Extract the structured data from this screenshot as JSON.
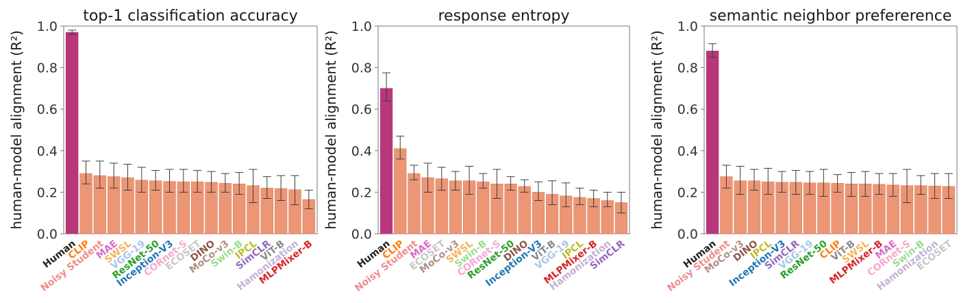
{
  "colors": {
    "human_bar": "#b8377a",
    "model_bar": "#ed9676",
    "bar_edge": "#d87c5a",
    "error_bar": "#3a3a3a",
    "axis": "#777777"
  },
  "model_label_colors": {
    "Human": "#222222",
    "CLIP": "#ff7f0e",
    "Noisy Student": "#f08c8c",
    "MAE": "#d96bc8",
    "SWSL": "#f5b35a",
    "VGG-19": "#a9c6e8",
    "ResNet-50": "#2ca02c",
    "Inception-V3": "#1f77b4",
    "CORnet-S": "#f7a8d0",
    "ECOSET": "#c7c7c7",
    "DINO": "#8c564b",
    "MoCo-v3": "#b08f86",
    "Swin-B": "#98df8a",
    "IPCL": "#bcbd22",
    "SimCLR": "#9467bd",
    "ViT-B": "#8a8a8a",
    "Hamonization": "#c5b0d5",
    "MLPMixer-B": "#d62728"
  },
  "chart_data": [
    {
      "type": "bar",
      "title": "top-1 classification accuracy",
      "ylabel": "human-model alignment (R²)",
      "ylim": [
        0,
        1.0
      ],
      "yticks": [
        "0.0",
        "0.2",
        "0.4",
        "0.6",
        "0.8",
        "1.0"
      ],
      "categories": [
        "Human",
        "CLIP",
        "Noisy Student",
        "MAE",
        "SWSL",
        "VGG-19",
        "ResNet-50",
        "Inception-V3",
        "CORnet-S",
        "ECOSET",
        "DINO",
        "MoCo-v3",
        "Swin-B",
        "IPCL",
        "SimCLR",
        "ViT-B",
        "Hamonization",
        "MLPMixer-B"
      ],
      "values": [
        0.97,
        0.29,
        0.28,
        0.275,
        0.27,
        0.258,
        0.255,
        0.252,
        0.25,
        0.25,
        0.248,
        0.243,
        0.24,
        0.232,
        0.22,
        0.218,
        0.212,
        0.165
      ],
      "err_low": [
        0.96,
        0.24,
        0.22,
        0.22,
        0.21,
        0.2,
        0.21,
        0.2,
        0.2,
        0.2,
        0.2,
        0.2,
        0.19,
        0.15,
        0.17,
        0.16,
        0.14,
        0.12
      ],
      "err_high": [
        0.98,
        0.35,
        0.35,
        0.34,
        0.335,
        0.32,
        0.305,
        0.31,
        0.31,
        0.305,
        0.3,
        0.29,
        0.295,
        0.31,
        0.275,
        0.28,
        0.28,
        0.21
      ]
    },
    {
      "type": "bar",
      "title": "response entropy",
      "ylabel": "human-model alignment (R²)",
      "ylim": [
        0,
        1.0
      ],
      "yticks": [
        "0.0",
        "0.2",
        "0.4",
        "0.6",
        "0.8",
        "1.0"
      ],
      "categories": [
        "Human",
        "CLIP",
        "Noisy Student",
        "MAE",
        "ECOSET",
        "MoCo-v3",
        "SWSL",
        "Swin-B",
        "CORnet-S",
        "ResNet-50",
        "DINO",
        "Inception-V3",
        "ViT-B",
        "VGG-19",
        "IPCL",
        "MLPMixer-B",
        "Hamonization",
        "SimCLR"
      ],
      "values": [
        0.7,
        0.41,
        0.29,
        0.27,
        0.265,
        0.255,
        0.255,
        0.25,
        0.24,
        0.24,
        0.228,
        0.2,
        0.19,
        0.182,
        0.175,
        0.17,
        0.16,
        0.15
      ],
      "err_low": [
        0.64,
        0.36,
        0.26,
        0.2,
        0.21,
        0.21,
        0.19,
        0.22,
        0.17,
        0.21,
        0.2,
        0.16,
        0.14,
        0.13,
        0.14,
        0.13,
        0.13,
        0.1
      ],
      "err_high": [
        0.775,
        0.47,
        0.33,
        0.34,
        0.32,
        0.3,
        0.325,
        0.29,
        0.31,
        0.275,
        0.26,
        0.25,
        0.255,
        0.245,
        0.22,
        0.21,
        0.2,
        0.2
      ]
    },
    {
      "type": "bar",
      "title": "semantic neighbor prefererence",
      "ylabel": "human-model alignment (R²)",
      "ylim": [
        0,
        1.0
      ],
      "yticks": [
        "0.0",
        "0.2",
        "0.4",
        "0.6",
        "0.8",
        "1.0"
      ],
      "categories": [
        "Human",
        "Noisy Student",
        "MoCo-v3",
        "DINO",
        "IPCL",
        "Inception-V3",
        "SimCLR",
        "VGG-19",
        "ResNet-50",
        "CLIP",
        "ViT-B",
        "SWSL",
        "MLPMixer-B",
        "MAE",
        "CORnet-S",
        "Swin-B",
        "Hamonization",
        "ECOSET"
      ],
      "values": [
        0.88,
        0.275,
        0.255,
        0.255,
        0.25,
        0.248,
        0.248,
        0.245,
        0.245,
        0.243,
        0.24,
        0.24,
        0.238,
        0.235,
        0.232,
        0.232,
        0.23,
        0.228
      ],
      "err_low": [
        0.85,
        0.22,
        0.19,
        0.21,
        0.19,
        0.2,
        0.19,
        0.19,
        0.18,
        0.2,
        0.18,
        0.18,
        0.19,
        0.18,
        0.15,
        0.19,
        0.17,
        0.17
      ],
      "err_high": [
        0.915,
        0.33,
        0.325,
        0.31,
        0.315,
        0.3,
        0.305,
        0.3,
        0.31,
        0.285,
        0.295,
        0.3,
        0.29,
        0.29,
        0.31,
        0.28,
        0.29,
        0.29
      ]
    }
  ]
}
